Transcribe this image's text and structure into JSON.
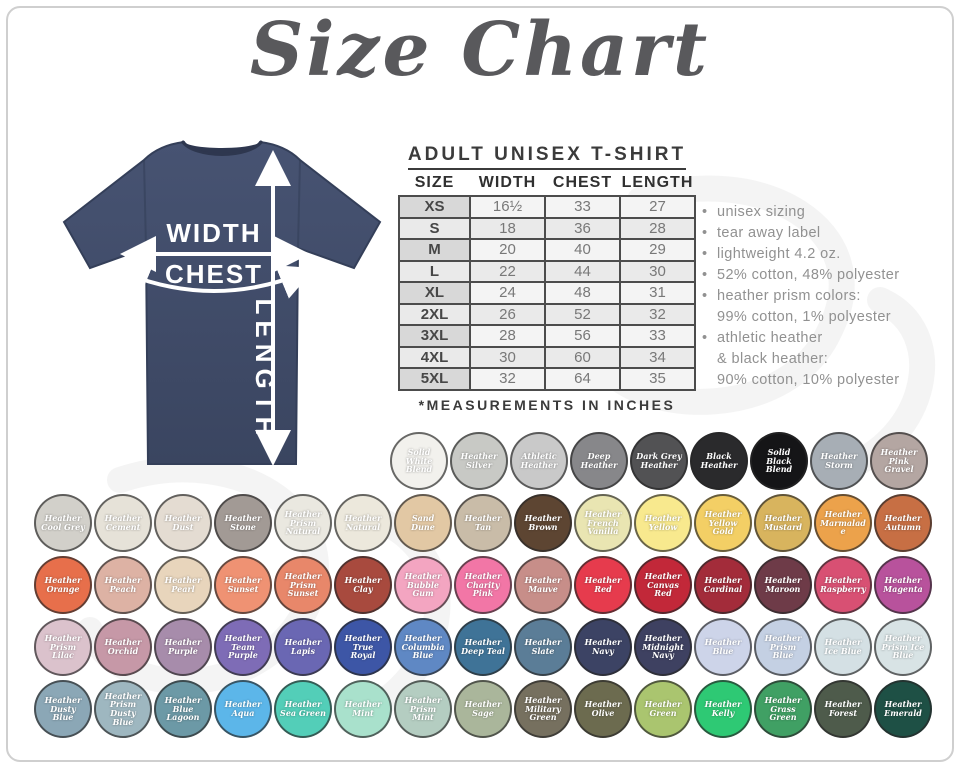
{
  "title": "Size Chart",
  "shirt_diagram": {
    "width_label": "WIDTH",
    "chest_label": "CHEST",
    "length_label": "LENGTH",
    "shirt_color": "#404c69"
  },
  "size_table": {
    "heading": "ADULT UNISEX T-SHIRT",
    "columns": [
      "SIZE",
      "WIDTH",
      "CHEST",
      "LENGTH"
    ],
    "rows": [
      [
        "XS",
        "16½",
        "33",
        "27"
      ],
      [
        "S",
        "18",
        "36",
        "28"
      ],
      [
        "M",
        "20",
        "40",
        "29"
      ],
      [
        "L",
        "22",
        "44",
        "30"
      ],
      [
        "XL",
        "24",
        "48",
        "31"
      ],
      [
        "2XL",
        "26",
        "52",
        "32"
      ],
      [
        "3XL",
        "28",
        "56",
        "33"
      ],
      [
        "4XL",
        "30",
        "60",
        "34"
      ],
      [
        "5XL",
        "32",
        "64",
        "35"
      ]
    ],
    "footnote": "*MEASUREMENTS IN INCHES"
  },
  "details": {
    "bullets": [
      {
        "bullet": true,
        "text": "unisex sizing"
      },
      {
        "bullet": true,
        "text": "tear away label"
      },
      {
        "bullet": true,
        "text": "lightweight 4.2 oz."
      },
      {
        "bullet": true,
        "text": "52% cotton, 48% polyester"
      },
      {
        "bullet": true,
        "text": "heather prism colors:"
      },
      {
        "bullet": false,
        "text": "99% cotton, 1% polyester"
      },
      {
        "bullet": true,
        "text": "athletic heather"
      },
      {
        "bullet": false,
        "text": "& black heather:"
      },
      {
        "bullet": false,
        "text": "90% cotton, 10% polyester"
      }
    ]
  },
  "swatches": {
    "rows": [
      [
        {
          "name": "Solid White Blend",
          "color": "#f2f1ed"
        },
        {
          "name": "Heather Silver",
          "color": "#c8c9c5"
        },
        {
          "name": "Athletic Heather",
          "color": "#c9c9c9"
        },
        {
          "name": "Deep Heather",
          "color": "#87878a"
        },
        {
          "name": "Dark Grey Heather",
          "color": "#525254"
        },
        {
          "name": "Black Heather",
          "color": "#2a2a2c"
        },
        {
          "name": "Solid Black Blend",
          "color": "#151517"
        },
        {
          "name": "Heather Storm",
          "color": "#a7aeb5"
        },
        {
          "name": "Heather Pink Gravel",
          "color": "#b4a6a2"
        }
      ],
      [
        {
          "name": "Heather Cool Grey",
          "color": "#d2d0ca"
        },
        {
          "name": "Heather Cement",
          "color": "#e6e2d8"
        },
        {
          "name": "Heather Dust",
          "color": "#e4dcd2"
        },
        {
          "name": "Heather Stone",
          "color": "#a29a95"
        },
        {
          "name": "Heather Prism Natural",
          "color": "#eae8e0"
        },
        {
          "name": "Heather Natural",
          "color": "#ece8dc"
        },
        {
          "name": "Sand Dune",
          "color": "#e2c8a4"
        },
        {
          "name": "Heather Tan",
          "color": "#c9bca8"
        },
        {
          "name": "Heather Brown",
          "color": "#5d4532"
        },
        {
          "name": "Heather French Vanilla",
          "color": "#e9e5b2"
        },
        {
          "name": "Heather Yellow",
          "color": "#f8e98e"
        },
        {
          "name": "Heather Yellow Gold",
          "color": "#f3cf65"
        },
        {
          "name": "Heather Mustard",
          "color": "#d8b45e"
        },
        {
          "name": "Heather Marmalade",
          "color": "#eca24b"
        },
        {
          "name": "Heather Autumn",
          "color": "#c76f44"
        }
      ],
      [
        {
          "name": "Heather Orange",
          "color": "#e76f4b"
        },
        {
          "name": "Heather Peach",
          "color": "#ddb2a4"
        },
        {
          "name": "Heather Pearl",
          "color": "#e8d5bc"
        },
        {
          "name": "Heather Sunset",
          "color": "#ef9273"
        },
        {
          "name": "Heather Prism Sunset",
          "color": "#e8876a"
        },
        {
          "name": "Heather Clay",
          "color": "#a84a3e"
        },
        {
          "name": "Heather Bubble Gum",
          "color": "#f3a5c1"
        },
        {
          "name": "Heather Charity Pink",
          "color": "#f276a6"
        },
        {
          "name": "Heather Mauve",
          "color": "#c78e89"
        },
        {
          "name": "Heather Red",
          "color": "#e63b4d"
        },
        {
          "name": "Heather Canvas Red",
          "color": "#c22839"
        },
        {
          "name": "Heather Cardinal",
          "color": "#a32c3a"
        },
        {
          "name": "Heather Maroon",
          "color": "#6e3b48"
        },
        {
          "name": "Heather Raspberry",
          "color": "#d85073"
        },
        {
          "name": "Heather Magenta",
          "color": "#b8529c"
        }
      ],
      [
        {
          "name": "Heather Prism Lilac",
          "color": "#dbc2cc"
        },
        {
          "name": "Heather Orchid",
          "color": "#c698a7"
        },
        {
          "name": "Heather Purple",
          "color": "#a78cab"
        },
        {
          "name": "Heather Team Purple",
          "color": "#7e6cb6"
        },
        {
          "name": "Heather Lapis",
          "color": "#6a67b3"
        },
        {
          "name": "Heather True Royal",
          "color": "#3d56a6"
        },
        {
          "name": "Heather Columbia Blue",
          "color": "#5f88c4"
        },
        {
          "name": "Heather Deep Teal",
          "color": "#3f7397"
        },
        {
          "name": "Heather Slate",
          "color": "#5b7d97"
        },
        {
          "name": "Heather Navy",
          "color": "#3c4364"
        },
        {
          "name": "Heather Midnight Navy",
          "color": "#3e4161"
        },
        {
          "name": "Heather Blue",
          "color": "#cdd4e9"
        },
        {
          "name": "Heather Prism Blue",
          "color": "#c4d0e3"
        },
        {
          "name": "Heather Ice Blue",
          "color": "#d4e0e4"
        },
        {
          "name": "Heather Prism Ice Blue",
          "color": "#d8e3e5"
        }
      ],
      [
        {
          "name": "Heather Dusty Blue",
          "color": "#8ba7b6"
        },
        {
          "name": "Heather Prism Dusty Blue",
          "color": "#9eb7c0"
        },
        {
          "name": "Heather Blue Lagoon",
          "color": "#6c99a6"
        },
        {
          "name": "Heather Aqua",
          "color": "#5cb6e9"
        },
        {
          "name": "Heather Sea Green",
          "color": "#53ceb8"
        },
        {
          "name": "Heather Mint",
          "color": "#a9e1cc"
        },
        {
          "name": "Heather Prism Mint",
          "color": "#b4cdc1"
        },
        {
          "name": "Heather Sage",
          "color": "#aab69b"
        },
        {
          "name": "Heather Military Green",
          "color": "#76705f"
        },
        {
          "name": "Heather Olive",
          "color": "#6c6b4f"
        },
        {
          "name": "Heather Green",
          "color": "#aac56f"
        },
        {
          "name": "Heather Kelly",
          "color": "#2ec974"
        },
        {
          "name": "Heather Grass Green",
          "color": "#40a064"
        },
        {
          "name": "Heather Forest",
          "color": "#4e5b4b"
        },
        {
          "name": "Heather Emerald",
          "color": "#1e5045"
        }
      ]
    ]
  }
}
